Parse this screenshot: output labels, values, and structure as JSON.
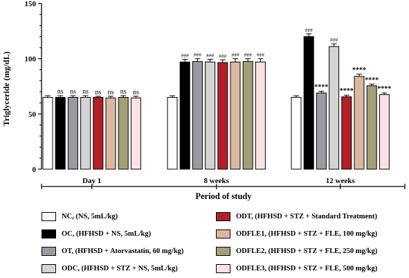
{
  "chart_data": {
    "type": "bar",
    "categories": [
      "Day 1",
      "8 weeks",
      "12 weeks"
    ],
    "xlabel": "Period of study",
    "ylabel": "Triglyceride (mg/dL)",
    "ylim": [
      0,
      150
    ],
    "yticks": [
      "0",
      "50",
      "100",
      "150"
    ],
    "series": [
      {
        "name": "NC, (NS, 5mL/kg)",
        "color": "#ffffff",
        "values": [
          65,
          65,
          65
        ],
        "errors": [
          1.5,
          1.5,
          1.5
        ],
        "labels": [
          "",
          "",
          ""
        ]
      },
      {
        "name": "OC, (HFHSD + NS, 5mL/kg)",
        "color": "#000000",
        "values": [
          65,
          97,
          120
        ],
        "errors": [
          1.5,
          2.5,
          2.5
        ],
        "labels": [
          "ns",
          "###",
          "###"
        ]
      },
      {
        "name": "OT, (HFHSD + Atorvastatin, 60 mg/kg)",
        "color": "#9a9aa0",
        "values": [
          65,
          97.5,
          69
        ],
        "errors": [
          1.5,
          2.5,
          1.5
        ],
        "labels": [
          "ns",
          "###",
          "****"
        ]
      },
      {
        "name": "ODC, (HFHSD + STZ + NS, 5mL/kg)",
        "color": "#d4d4d4",
        "values": [
          65,
          97,
          111
        ],
        "errors": [
          1.5,
          2.5,
          2.5
        ],
        "labels": [
          "ns",
          "###",
          "###"
        ]
      },
      {
        "name": "ODT, (HFHSD + STZ + Standard Treatment)",
        "color": "#b3202a",
        "values": [
          65,
          96.5,
          65.5
        ],
        "errors": [
          1,
          2.5,
          1.5
        ],
        "labels": [
          "ns",
          "###",
          "****"
        ]
      },
      {
        "name": "ODFLE1, (HFHSD + STZ + FLE, 100 mg/kg)",
        "color": "#dcb7a0",
        "values": [
          64.5,
          97,
          84
        ],
        "errors": [
          1.5,
          3,
          2
        ],
        "labels": [
          "ns",
          "###",
          "****"
        ]
      },
      {
        "name": "ODFLE2, (HFHSD + STZ + FLE, 250 mg/kg)",
        "color": "#a3a077",
        "values": [
          65,
          97.5,
          75.5
        ],
        "errors": [
          1.5,
          2.5,
          1.5
        ],
        "labels": [
          "ns",
          "###",
          "****"
        ]
      },
      {
        "name": "ODFLE3, (HFHSD + STZ + FLE, 500 mg/kg)",
        "color": "#fbe1e4",
        "values": [
          64.5,
          97,
          67.5
        ],
        "errors": [
          1.5,
          3,
          1.5
        ],
        "labels": [
          "ns",
          "###",
          "****"
        ]
      }
    ]
  }
}
